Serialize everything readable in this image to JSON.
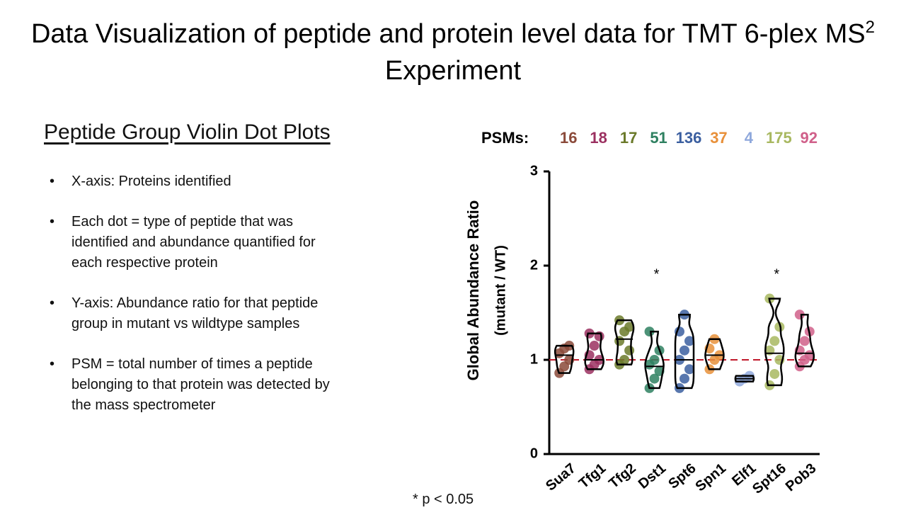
{
  "slide": {
    "title": "Data Visualization of peptide and protein level data for TMT 6-plex MS",
    "title_superscript": "2",
    "title_suffix": " Experiment",
    "heading": "Peptide Group Violin Dot Plots",
    "bullets": [
      "X-axis: Proteins identified",
      "Each dot = type of peptide that was identified and abundance quantified for each respective protein",
      "Y-axis: Abundance ratio for that peptide group in mutant vs wildtype samples",
      "PSM = total number of times a peptide belonging to that protein was detected by the mass spectrometer"
    ],
    "footnote": "* p < 0.05"
  },
  "chart_data": {
    "type": "violin",
    "y_label": "Global Abundance Ratio",
    "y_label_sub": "(mutant / WT)",
    "categories": [
      "Sua7",
      "Tfg1",
      "Tfg2",
      "Dst1",
      "Spt6",
      "Spn1",
      "Elf1",
      "Spt16",
      "Pob3"
    ],
    "colors": [
      "#8b4a3a",
      "#9b3060",
      "#6b7a2a",
      "#2e8060",
      "#3b5fa0",
      "#e8903a",
      "#8fa8dc",
      "#a8b860",
      "#d0608a"
    ],
    "psm_label": "PSMs:",
    "psms": [
      16,
      18,
      17,
      51,
      136,
      37,
      4,
      175,
      92
    ],
    "points": [
      [
        0.86,
        0.93,
        1.0,
        1.07,
        1.12,
        1.15
      ],
      [
        0.9,
        0.95,
        1.0,
        1.05,
        1.15,
        1.25,
        1.28
      ],
      [
        0.95,
        1.0,
        1.1,
        1.2,
        1.3,
        1.35,
        1.42
      ],
      [
        0.7,
        0.8,
        0.88,
        0.95,
        1.0,
        1.1,
        1.3
      ],
      [
        0.7,
        0.8,
        0.9,
        1.0,
        1.1,
        1.2,
        1.3,
        1.48
      ],
      [
        0.9,
        1.0,
        1.05,
        1.12,
        1.22
      ],
      [
        0.77,
        0.8,
        0.83
      ],
      [
        0.73,
        0.85,
        1.0,
        1.1,
        1.2,
        1.35,
        1.65
      ],
      [
        0.93,
        1.0,
        1.05,
        1.1,
        1.2,
        1.3,
        1.48
      ]
    ],
    "medians": [
      1.05,
      1.0,
      1.22,
      0.93,
      1.0,
      1.05,
      0.8,
      1.07,
      1.07
    ],
    "significant": [
      false,
      false,
      false,
      true,
      false,
      false,
      false,
      true,
      false
    ],
    "sig_symbol": "*",
    "ref_line": 1,
    "ref_color": "#c0182a",
    "ylim": [
      0,
      3
    ],
    "yticks": [
      0,
      1,
      2,
      3
    ]
  }
}
